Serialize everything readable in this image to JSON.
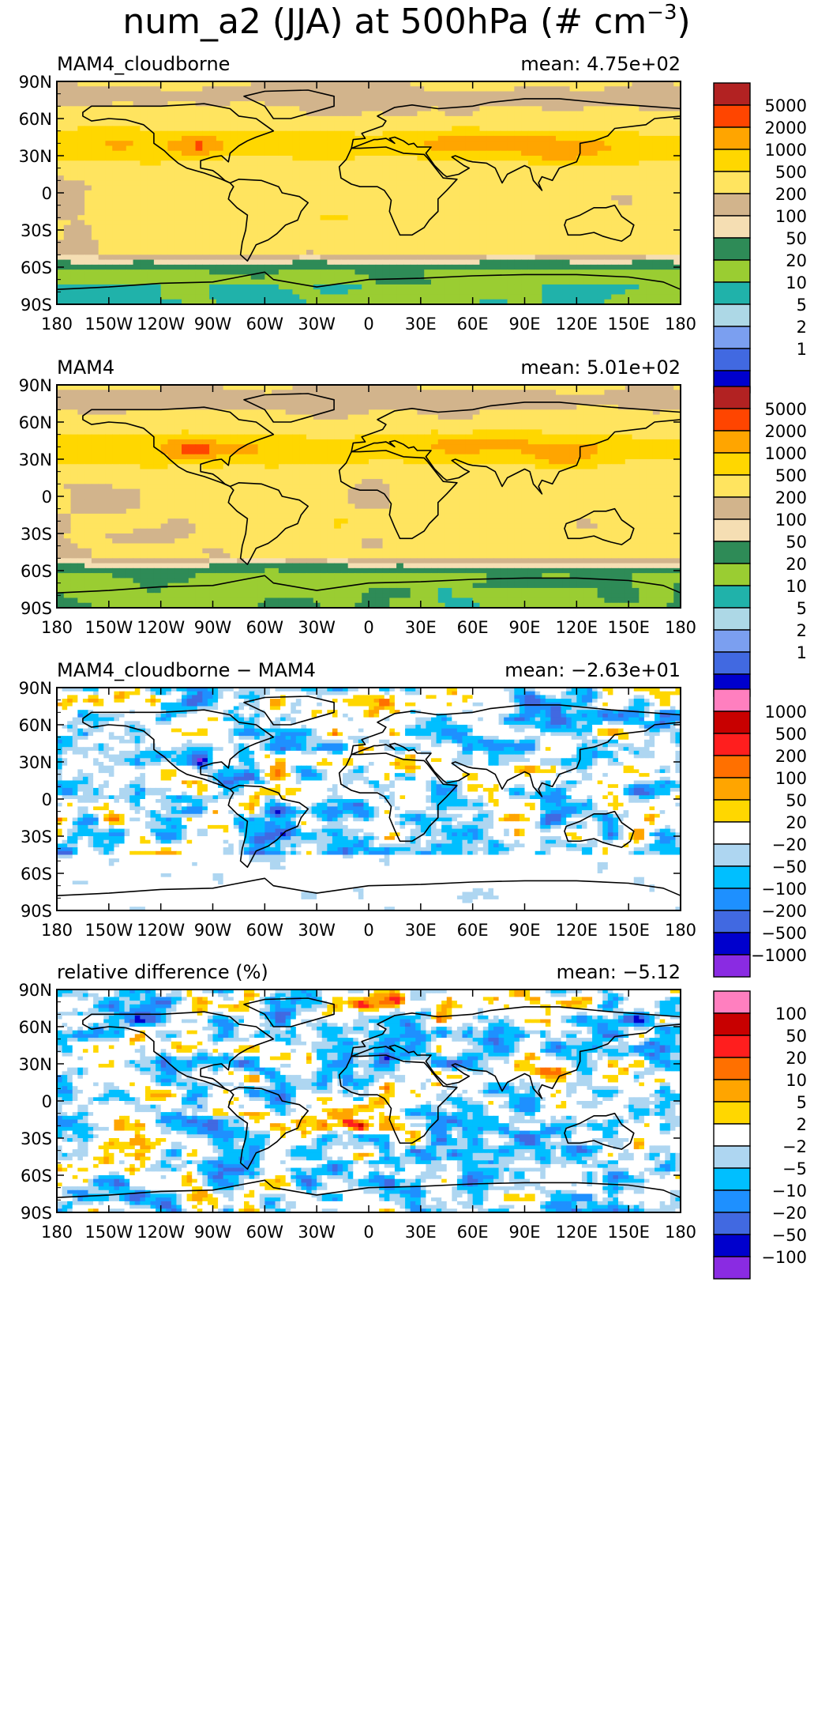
{
  "figure_title": {
    "prefix": "num_a2 (JJA) at 500hPa (# cm",
    "exponent": "−3",
    "suffix": ")"
  },
  "x_tick_labels": [
    "180",
    "150W",
    "120W",
    "90W",
    "60W",
    "30W",
    "0",
    "30E",
    "60E",
    "90E",
    "120E",
    "150E",
    "180"
  ],
  "y_tick_labels": [
    "90N",
    "60N",
    "30N",
    "0",
    "30S",
    "60S",
    "90S"
  ],
  "chart_data": [
    {
      "type": "heatmap",
      "title": "MAM4_cloudborne",
      "mean_text": "mean: 4.75e+02",
      "xlim": [
        -180,
        180
      ],
      "ylim": [
        -90,
        90
      ],
      "colorbar_labels": [
        "5000",
        "2000",
        "1000",
        "500",
        "200",
        "100",
        "50",
        "20",
        "10",
        "5",
        "2",
        "1"
      ],
      "colorbar_colors": [
        "#b22222",
        "#ff4500",
        "#ffa500",
        "#ffd700",
        "#ffe45f",
        "#d2b48c",
        "#f5deb3",
        "#2e8b57",
        "#9acd32",
        "#20b2aa",
        "#add8e6",
        "#7b9ff0",
        "#4169e1",
        "#0000cd"
      ]
    },
    {
      "type": "heatmap",
      "title": "MAM4",
      "mean_text": "mean: 5.01e+02",
      "xlim": [
        -180,
        180
      ],
      "ylim": [
        -90,
        90
      ],
      "colorbar_labels": [
        "5000",
        "2000",
        "1000",
        "500",
        "200",
        "100",
        "50",
        "20",
        "10",
        "5",
        "2",
        "1"
      ],
      "colorbar_colors": [
        "#b22222",
        "#ff4500",
        "#ffa500",
        "#ffd700",
        "#ffe45f",
        "#d2b48c",
        "#f5deb3",
        "#2e8b57",
        "#9acd32",
        "#20b2aa",
        "#add8e6",
        "#7b9ff0",
        "#4169e1",
        "#0000cd"
      ]
    },
    {
      "type": "heatmap",
      "title": "MAM4_cloudborne − MAM4",
      "mean_text": "mean: −2.63e+01",
      "xlim": [
        -180,
        180
      ],
      "ylim": [
        -90,
        90
      ],
      "colorbar_labels": [
        "1000",
        "500",
        "200",
        "100",
        "50",
        "20",
        "−20",
        "−50",
        "−100",
        "−200",
        "−500",
        "−1000"
      ],
      "colorbar_colors": [
        "#ff7fbf",
        "#c80000",
        "#ff1e1e",
        "#ff7000",
        "#ffa500",
        "#ffd700",
        "#ffffff",
        "#aed6f1",
        "#00bfff",
        "#1e90ff",
        "#4169e1",
        "#0000cd",
        "#8a2be2"
      ]
    },
    {
      "type": "heatmap",
      "title": "relative difference (%)",
      "mean_text": "mean: −5.12",
      "xlim": [
        -180,
        180
      ],
      "ylim": [
        -90,
        90
      ],
      "colorbar_labels": [
        "100",
        "50",
        "20",
        "10",
        "5",
        "2",
        "−2",
        "−5",
        "−10",
        "−20",
        "−50",
        "−100"
      ],
      "colorbar_colors": [
        "#ff7fbf",
        "#c80000",
        "#ff1e1e",
        "#ff7000",
        "#ffa500",
        "#ffd700",
        "#ffffff",
        "#aed6f1",
        "#00bfff",
        "#1e90ff",
        "#4169e1",
        "#0000cd",
        "#8a2be2"
      ]
    }
  ]
}
